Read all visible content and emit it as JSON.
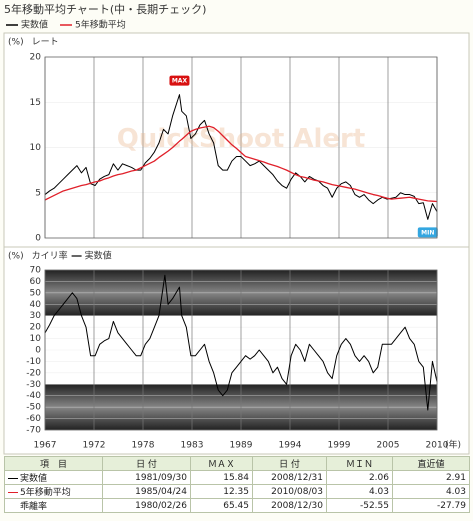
{
  "title": "5年移動平均チャート(中・長期チェック)",
  "chart_data": [
    {
      "type": "line",
      "y_label": "(%)",
      "title": "レート",
      "watermark": "QuickShoot Alert",
      "xlim": [
        1967,
        2010
      ],
      "ylim": [
        0,
        20
      ],
      "yticks": [
        0,
        5,
        10,
        15,
        20
      ],
      "grid": true,
      "x": [
        1967,
        1967.5,
        1968,
        1968.5,
        1969,
        1969.5,
        1970,
        1970.5,
        1971,
        1971.5,
        1972,
        1972.5,
        1973,
        1973.5,
        1974,
        1974.5,
        1975,
        1975.5,
        1976,
        1976.5,
        1977,
        1977.5,
        1978,
        1978.5,
        1979,
        1979.5,
        1980,
        1980.5,
        1981,
        1981.75,
        1982,
        1982.5,
        1983,
        1983.5,
        1984,
        1984.5,
        1985,
        1985.5,
        1986,
        1986.5,
        1987,
        1987.5,
        1988,
        1988.5,
        1989,
        1989.5,
        1990,
        1990.5,
        1991,
        1991.5,
        1992,
        1992.5,
        1993,
        1993.5,
        1994,
        1994.5,
        1995,
        1995.5,
        1996,
        1996.5,
        1997,
        1997.5,
        1998,
        1998.5,
        1999,
        1999.5,
        2000,
        2000.5,
        2001,
        2001.5,
        2002,
        2002.5,
        2003,
        2003.5,
        2004,
        2004.5,
        2005,
        2005.5,
        2006,
        2006.5,
        2007,
        2007.5,
        2008,
        2008.5,
        2008.99,
        2009.5,
        2010
      ],
      "series": [
        {
          "name": "実数値",
          "color": "#000000",
          "values": [
            4.8,
            5.2,
            5.5,
            6.0,
            6.5,
            7.0,
            7.5,
            8.0,
            7.2,
            7.8,
            6.0,
            5.8,
            6.5,
            6.8,
            7.0,
            8.2,
            7.5,
            8.2,
            8.0,
            7.8,
            7.5,
            7.5,
            8.3,
            8.8,
            9.5,
            10.5,
            12.0,
            11.5,
            13.5,
            15.84,
            14.0,
            13.5,
            11.0,
            11.5,
            12.5,
            13.0,
            11.5,
            10.5,
            8.0,
            7.5,
            7.5,
            8.5,
            9.0,
            9.0,
            8.5,
            8.0,
            8.2,
            8.5,
            8.0,
            7.5,
            7.0,
            6.3,
            5.8,
            5.5,
            6.5,
            7.2,
            6.8,
            6.2,
            6.8,
            6.5,
            6.3,
            5.8,
            5.5,
            4.5,
            5.5,
            6.0,
            6.2,
            5.8,
            4.8,
            4.5,
            4.8,
            4.2,
            3.8,
            4.2,
            4.5,
            4.3,
            4.4,
            4.5,
            5.0,
            4.8,
            4.8,
            4.6,
            3.8,
            3.9,
            2.06,
            3.8,
            2.91
          ]
        },
        {
          "name": "5年移動平均",
          "color": "#e0202a",
          "values": [
            4.2,
            4.45,
            4.7,
            4.95,
            5.2,
            5.35,
            5.5,
            5.65,
            5.8,
            5.9,
            6.05,
            6.2,
            6.3,
            6.5,
            6.65,
            6.85,
            7.0,
            7.1,
            7.25,
            7.4,
            7.5,
            7.75,
            8.0,
            8.25,
            8.5,
            8.9,
            9.25,
            9.6,
            10.0,
            10.7,
            10.9,
            11.35,
            11.8,
            12.0,
            12.15,
            12.25,
            12.35,
            12.2,
            11.8,
            11.3,
            10.8,
            10.3,
            9.9,
            9.45,
            9.0,
            8.85,
            8.7,
            8.55,
            8.4,
            8.2,
            8.05,
            7.9,
            7.7,
            7.5,
            7.25,
            7.0,
            6.8,
            6.7,
            6.55,
            6.4,
            6.3,
            6.2,
            6.05,
            5.9,
            5.8,
            5.7,
            5.6,
            5.5,
            5.4,
            5.25,
            5.1,
            4.95,
            4.8,
            4.7,
            4.55,
            4.4,
            4.3,
            4.35,
            4.4,
            4.45,
            4.5,
            4.4,
            4.3,
            4.2,
            4.1,
            4.07,
            4.03
          ]
        }
      ],
      "markers": [
        {
          "text": "MAX",
          "at": "max",
          "color": "#d81010"
        },
        {
          "text": "MIN",
          "at": "min",
          "color": "#33a6e0"
        }
      ]
    },
    {
      "type": "line",
      "y_label": "(%)",
      "title": "カイリ率",
      "xlim": [
        1967,
        2010
      ],
      "ylim": [
        -70,
        70
      ],
      "yticks": [
        -70,
        -60,
        -50,
        -40,
        -30,
        -20,
        -10,
        0,
        10,
        20,
        30,
        40,
        50,
        60,
        70
      ],
      "grid": true,
      "xticks": [
        1967,
        {
          "value": 1972.375,
          "label": "1972"
        },
        {
          "value": 1977.75,
          "label": "1978"
        },
        {
          "value": 1983.125,
          "label": "1983"
        },
        {
          "value": 1988.5,
          "label": "1989"
        },
        {
          "value": 1993.875,
          "label": "1994"
        },
        {
          "value": 1999.25,
          "label": "1999"
        },
        {
          "value": 2004.625,
          "label": "2005"
        },
        2010
      ],
      "x_label": "(年)",
      "bands": [
        {
          "from": 30,
          "to": 70
        },
        {
          "from": -70,
          "to": -30
        }
      ],
      "band_color": "#e8001c",
      "x": [
        1967,
        1967.5,
        1968,
        1968.5,
        1969,
        1969.5,
        1970,
        1970.5,
        1971,
        1971.5,
        1972,
        1972.5,
        1973,
        1973.5,
        1974,
        1974.5,
        1975,
        1975.5,
        1976,
        1976.5,
        1977,
        1977.5,
        1978,
        1978.5,
        1979,
        1979.5,
        1980.15,
        1980.5,
        1981,
        1981.75,
        1982,
        1982.5,
        1983,
        1983.5,
        1984,
        1984.5,
        1985,
        1985.5,
        1986,
        1986.5,
        1987,
        1987.5,
        1988,
        1988.5,
        1989,
        1989.5,
        1990,
        1990.5,
        1991,
        1991.5,
        1992,
        1992.5,
        1993,
        1993.5,
        1994,
        1994.5,
        1995,
        1995.5,
        1996,
        1996.5,
        1997,
        1997.5,
        1998,
        1998.5,
        1999,
        1999.5,
        2000,
        2000.5,
        2001,
        2001.5,
        2002,
        2002.5,
        2003,
        2003.5,
        2004,
        2004.5,
        2005,
        2005.5,
        2006,
        2006.5,
        2007,
        2007.5,
        2008,
        2008.5,
        2008.99,
        2009.5,
        2010
      ],
      "series": [
        {
          "name": "実数値",
          "color": "#000000",
          "values": [
            15,
            22,
            30,
            35,
            40,
            45,
            50,
            45,
            30,
            20,
            -5,
            -5,
            5,
            8,
            10,
            25,
            15,
            10,
            5,
            0,
            -5,
            -5,
            5,
            10,
            20,
            30,
            65.45,
            40,
            45,
            55,
            30,
            20,
            -5,
            -5,
            0,
            5,
            -10,
            -20,
            -35,
            -40,
            -35,
            -20,
            -15,
            -10,
            -5,
            -8,
            -5,
            0,
            -5,
            -10,
            -20,
            -15,
            -25,
            -30,
            -5,
            5,
            0,
            -10,
            5,
            0,
            -5,
            -10,
            -20,
            -25,
            -5,
            5,
            10,
            5,
            -5,
            -10,
            -5,
            -10,
            -20,
            -15,
            5,
            5,
            5,
            10,
            15,
            20,
            10,
            5,
            -10,
            -15,
            -52.55,
            -10,
            -27.79
          ]
        }
      ]
    }
  ],
  "table": {
    "headers": [
      "項　目",
      "日 付",
      "ＭＡＸ",
      "日 付",
      "ＭＩＮ",
      "直近値"
    ],
    "rows": [
      [
        "実数値",
        "1981/09/30",
        "15.84",
        "2008/12/31",
        "2.06",
        "2.91"
      ],
      [
        "5年移動平均",
        "1985/04/24",
        "12.35",
        "2010/08/03",
        "4.03",
        "4.03"
      ],
      [
        "乖離率",
        "1980/02/26",
        "65.45",
        "2008/12/30",
        "-52.55",
        "-27.79"
      ]
    ]
  }
}
